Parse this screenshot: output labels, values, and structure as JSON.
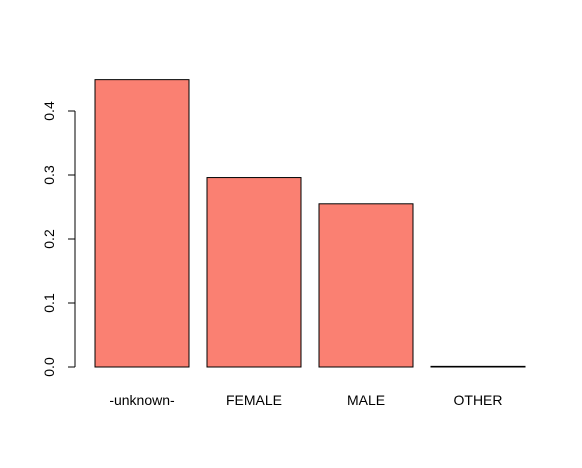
{
  "chart_data": {
    "type": "bar",
    "title": "",
    "xlabel": "",
    "ylabel": "",
    "categories": [
      "-unknown-",
      "FEMALE",
      "MALE",
      "OTHER"
    ],
    "values": [
      0.449,
      0.296,
      0.255,
      0.001
    ],
    "ylim": [
      0,
      0.4
    ],
    "yticks": [
      "0.0",
      "0.1",
      "0.2",
      "0.3",
      "0.4"
    ],
    "bar_color": "#fa8072",
    "grid": false,
    "legend": "none"
  }
}
